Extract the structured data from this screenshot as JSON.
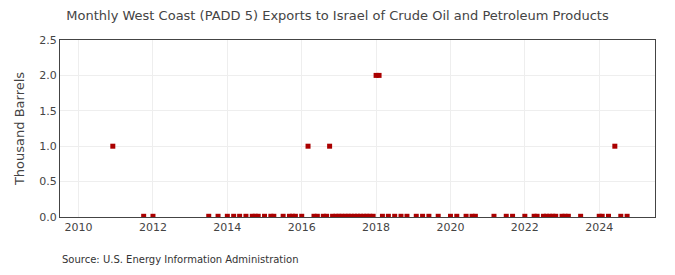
{
  "chart_data": {
    "type": "scatter",
    "title": "Monthly West Coast (PADD 5) Exports to Israel of Crude Oil and Petroleum Products",
    "y_label": "Thousand Barrels",
    "annotations": [
      "Source: U.S. Energy Information Administration"
    ],
    "x": [
      2010.92,
      2011.75,
      2012.0,
      2013.5,
      2013.75,
      2014.0,
      2014.17,
      2014.33,
      2014.5,
      2014.67,
      2014.75,
      2014.83,
      2015.0,
      2015.17,
      2015.25,
      2015.5,
      2015.67,
      2015.75,
      2015.83,
      2016.0,
      2016.17,
      2016.33,
      2016.42,
      2016.58,
      2016.67,
      2016.75,
      2016.83,
      2016.92,
      2017.0,
      2017.08,
      2017.17,
      2017.25,
      2017.33,
      2017.42,
      2017.5,
      2017.58,
      2017.67,
      2017.75,
      2017.83,
      2017.92,
      2018.0,
      2018.08,
      2018.17,
      2018.33,
      2018.5,
      2018.67,
      2018.83,
      2019.08,
      2019.25,
      2019.42,
      2019.67,
      2020.0,
      2020.17,
      2020.42,
      2020.58,
      2020.67,
      2021.17,
      2021.5,
      2021.67,
      2022.0,
      2022.25,
      2022.33,
      2022.5,
      2022.58,
      2022.67,
      2022.75,
      2022.83,
      2023.0,
      2023.08,
      2023.17,
      2023.5,
      2024.0,
      2024.08,
      2024.25,
      2024.42,
      2024.58,
      2024.75
    ],
    "values": [
      1.0,
      0.01,
      0.01,
      0.01,
      0.01,
      0.01,
      0.01,
      0.01,
      0.01,
      0.01,
      0.01,
      0.01,
      0.01,
      0.01,
      0.01,
      0.01,
      0.01,
      0.01,
      0.01,
      0.01,
      1.0,
      0.01,
      0.01,
      0.01,
      0.01,
      1.0,
      0.01,
      0.01,
      0.01,
      0.01,
      0.01,
      0.01,
      0.01,
      0.01,
      0.01,
      0.01,
      0.01,
      0.01,
      0.01,
      0.01,
      2.0,
      2.0,
      0.01,
      0.01,
      0.01,
      0.01,
      0.01,
      0.01,
      0.01,
      0.01,
      0.01,
      0.01,
      0.01,
      0.01,
      0.01,
      0.01,
      0.01,
      0.01,
      0.01,
      0.01,
      0.01,
      0.01,
      0.01,
      0.01,
      0.01,
      0.01,
      0.01,
      0.01,
      0.01,
      0.01,
      0.01,
      0.01,
      0.01,
      0.01,
      1.0,
      0.01,
      0.01
    ],
    "color": "#aa0000",
    "marker": "square",
    "xlim": [
      2009.5,
      2025.5
    ],
    "xticks": [
      2010,
      2012,
      2014,
      2016,
      2018,
      2020,
      2022,
      2024
    ],
    "ylim": [
      0,
      2.5
    ],
    "yticks": [
      {
        "value": 0,
        "label": "0.0"
      },
      0.5,
      {
        "value": 1,
        "label": "1.0"
      },
      1.5,
      {
        "value": 2,
        "label": "2.0"
      },
      2.5
    ],
    "grid": true
  }
}
